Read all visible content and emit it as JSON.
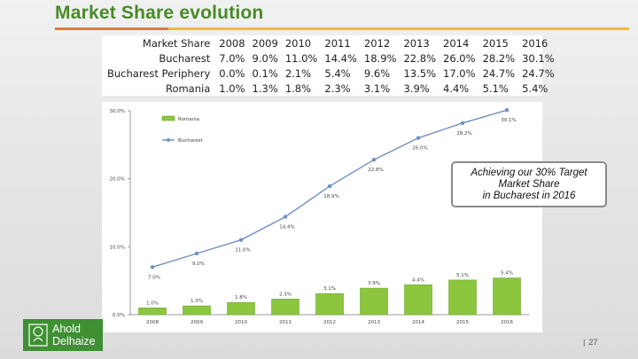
{
  "slide": {
    "title": "Market  Share evolution",
    "callout": "Achieving our 30% Target\nMarket Share\nin Bucharest in 2016",
    "page_separator": "|",
    "page_number": "27",
    "logo": {
      "line1": "Ahold",
      "line2": "Delhaize"
    },
    "colors": {
      "title": "#4a8a2a",
      "accent_orange": "#e07b39",
      "accent_yellow": "#efbe3a",
      "line": "#6f8fc4",
      "bar": "#8cc63f",
      "logo": "#3f8f33"
    }
  },
  "table": {
    "header": [
      "Market Share",
      "2008",
      "2009",
      "2010",
      "2011",
      "2012",
      "2013",
      "2014",
      "2015",
      "2016"
    ],
    "rows": [
      [
        "Bucharest",
        "7.0%",
        "9.0%",
        "11.0%",
        "14.4%",
        "18.9%",
        "22.8%",
        "26.0%",
        "28.2%",
        "30.1%"
      ],
      [
        "Bucharest Periphery",
        "0.0%",
        "0.1%",
        "2.1%",
        "5.4%",
        "9.6%",
        "13.5%",
        "17.0%",
        "24.7%",
        "24.7%"
      ],
      [
        "Romania",
        "1.0%",
        "1.3%",
        "1.8%",
        "2.3%",
        "3.1%",
        "3.9%",
        "4.4%",
        "5.1%",
        "5.4%"
      ]
    ]
  },
  "chart_data": {
    "type": "bar",
    "title": "",
    "categories": [
      "2008",
      "2009",
      "2010",
      "2011",
      "2012",
      "2013",
      "2014",
      "2015",
      "2016"
    ],
    "series": [
      {
        "name": "Romania",
        "kind": "bar",
        "values": [
          1.0,
          1.3,
          1.8,
          2.3,
          3.1,
          3.9,
          4.4,
          5.1,
          5.4
        ],
        "labels": [
          "1.0%",
          "1.3%",
          "1.8%",
          "2.3%",
          "3.1%",
          "3.9%",
          "4.4%",
          "5.1%",
          "5.4%"
        ]
      },
      {
        "name": "Bucharest",
        "kind": "line",
        "values": [
          7.0,
          9.0,
          11.0,
          14.4,
          18.9,
          22.8,
          26.0,
          28.2,
          30.1
        ],
        "labels": [
          "7.0%",
          "9.0%",
          "11.0%",
          "14.4%",
          "18.9%",
          "22.8%",
          "26.0%",
          "28.2%",
          "30.1%"
        ]
      }
    ],
    "y_ticks": [
      0,
      10,
      20,
      30
    ],
    "y_tick_labels": [
      "0.0%",
      "10.0%",
      "20.0%",
      "30.0%"
    ],
    "ylim": [
      0,
      30
    ],
    "xlabel": "",
    "ylabel": "",
    "legend": "top-left"
  }
}
